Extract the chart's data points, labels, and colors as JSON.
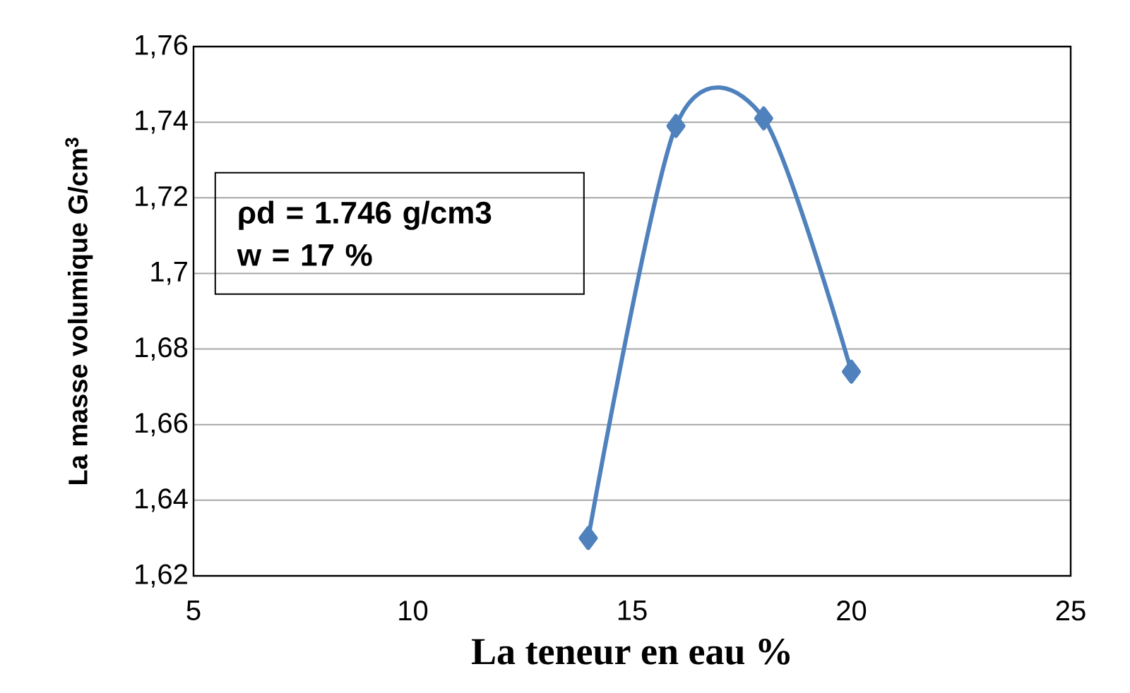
{
  "chart_data": {
    "type": "line",
    "xlabel": "La teneur en eau %",
    "ylabel": "La masse volumique G/cm$^{3}$",
    "annotations": [
      "ρd = 1.746 g/cm3",
      "w = 17 %"
    ],
    "x": [
      14,
      16,
      18,
      20
    ],
    "series": [
      {
        "color": "#4f81bd",
        "values": [
          1.63,
          1.739,
          1.741,
          1.674
        ]
      }
    ],
    "xlim": [
      5,
      25
    ],
    "xticks": [
      5,
      10,
      15,
      20,
      25
    ],
    "ylim": [
      1.62,
      1.76
    ],
    "yticks": [
      {
        "value": 1.62,
        "label": "1,62"
      },
      {
        "value": 1.64,
        "label": "1,64"
      },
      {
        "value": 1.66,
        "label": "1,66"
      },
      {
        "value": 1.68,
        "label": "1,68"
      },
      {
        "value": 1.7,
        "label": "1,7"
      },
      {
        "value": 1.72,
        "label": "1,72"
      },
      {
        "value": 1.74,
        "label": "1,74"
      },
      {
        "value": 1.76,
        "label": "1,76"
      }
    ],
    "grid": "y",
    "marker": "diamond",
    "line_style": "solid"
  }
}
